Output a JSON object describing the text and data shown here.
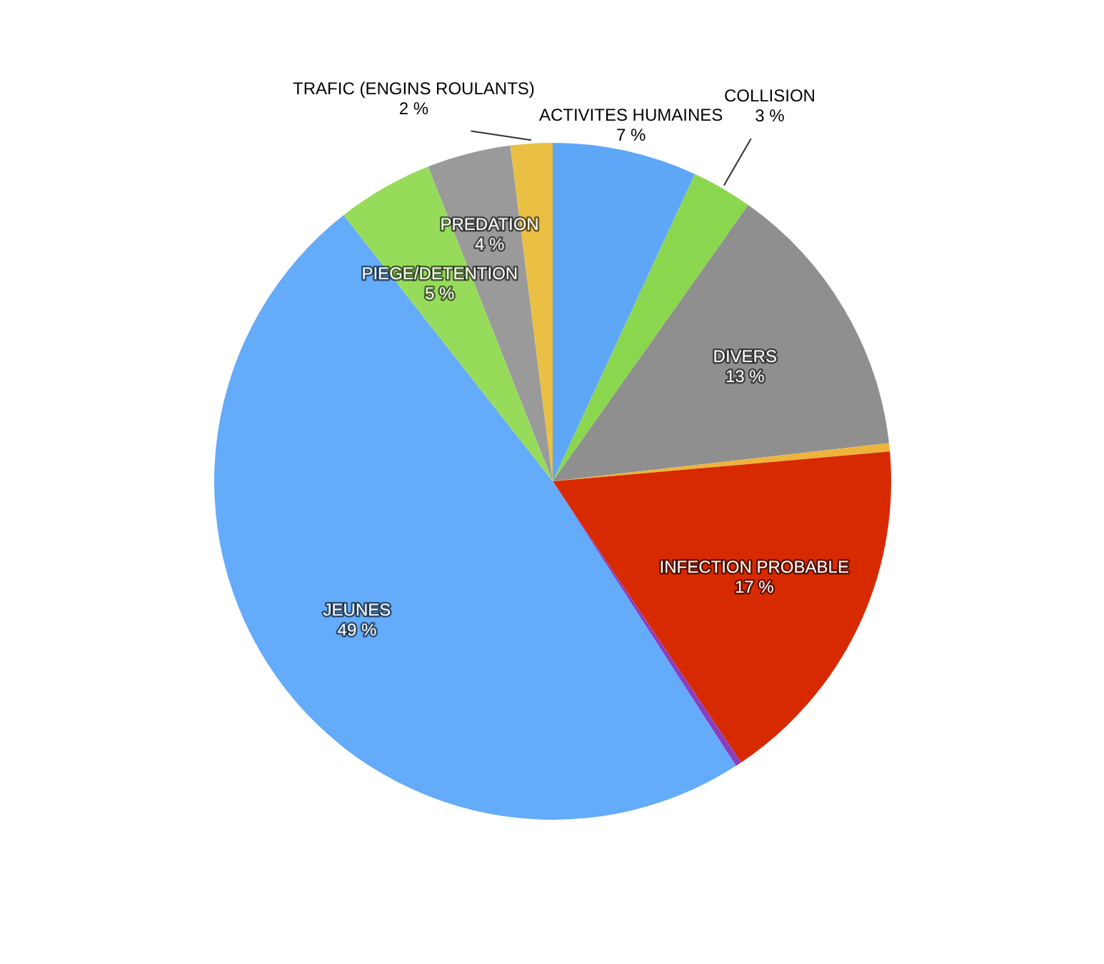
{
  "chart_data": {
    "type": "pie",
    "categories": [
      "ACTIVITES HUMAINES",
      "COLLISION",
      "DIVERS",
      null,
      "INFECTION PROBABLE",
      null,
      "JEUNES",
      "PIEGE/DETENTION",
      "PREDATION",
      "TRAFIC (ENGINS ROULANTS)"
    ],
    "values": [
      6.9,
      2.9,
      13.4,
      0.4,
      17,
      0.3,
      48.5,
      4.6,
      4.0,
      2.0
    ],
    "value_labels": [
      "7 %",
      "3 %",
      "13 %",
      null,
      "17 %",
      null,
      "49 %",
      "5 %",
      "4 %",
      "2 %"
    ],
    "colors": [
      "#5ea6f6",
      "#8ad64e",
      "#8f8f8f",
      "#eeb33a",
      "#d82a00",
      "#8a3fbf",
      "#64abf9",
      "#97db5b",
      "#9a9a9a",
      "#e9c043"
    ]
  }
}
